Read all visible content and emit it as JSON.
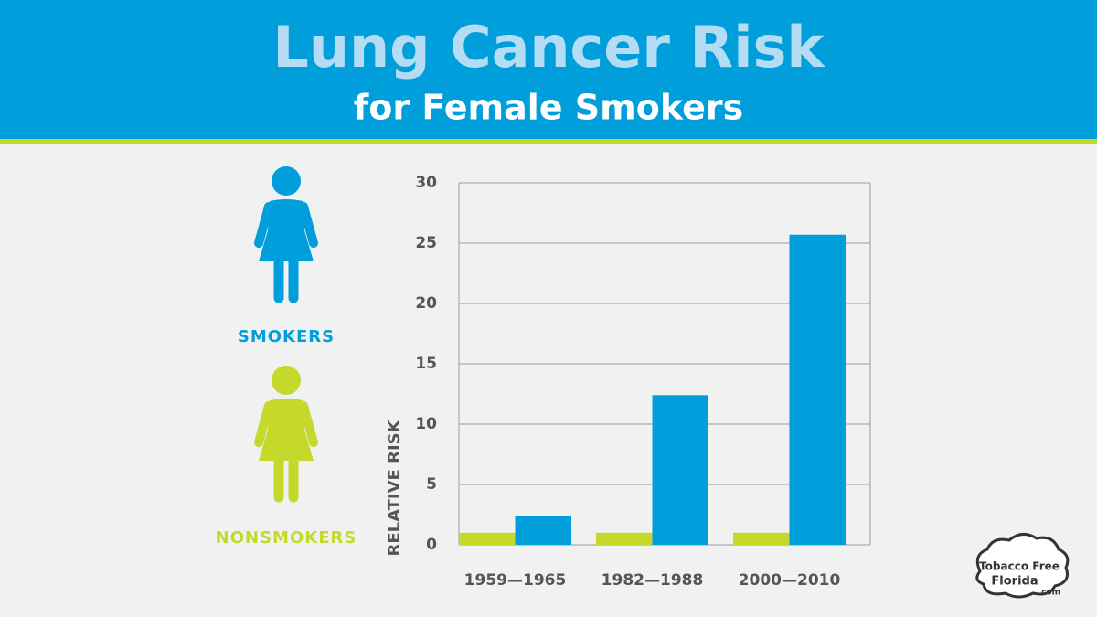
{
  "chart_data": {
    "type": "bar",
    "title": "Lung Cancer Risk",
    "subtitle": "for Female Smokers",
    "y_label": "RELATIVE RISK",
    "categories": [
      "1959—1965",
      "1982—1988",
      "2000—2010"
    ],
    "series": [
      {
        "name": "NONSMOKERS",
        "color": "#c5d92d",
        "values": [
          1,
          1,
          1
        ]
      },
      {
        "name": "SMOKERS",
        "color": "#009edb",
        "values": [
          2.4,
          12.4,
          25.7
        ]
      }
    ],
    "ylim": [
      0,
      30
    ],
    "yticks": [
      0,
      5,
      10,
      15,
      20,
      25,
      30
    ],
    "grid": true
  },
  "logo": {
    "line1": "Tobacco Free",
    "line2": "Florida",
    "suffix": ".com"
  }
}
